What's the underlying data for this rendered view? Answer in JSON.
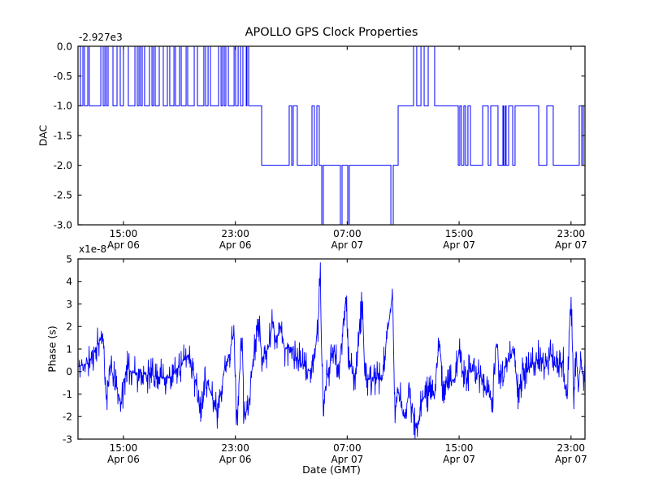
{
  "figure_title": "APOLLO GPS Clock Properties",
  "line_color": "#0000ff",
  "axis_color": "#1a1a1a",
  "chart_data": [
    {
      "type": "line",
      "name": "dac-subplot",
      "title": "APOLLO GPS Clock Properties",
      "ylabel": "DAC",
      "offset_text": "-2.927e3",
      "ylim": [
        -3.0,
        0.0
      ],
      "xlim": [
        11.75,
        48.0
      ],
      "grid": false,
      "legend": null,
      "yticks": [
        {
          "v": 0.0,
          "label": "0.0"
        },
        {
          "v": -0.5,
          "label": "-0.5"
        },
        {
          "v": -1.0,
          "label": "-1.0"
        },
        {
          "v": -1.5,
          "label": "-1.5"
        },
        {
          "v": -2.0,
          "label": "-2.0"
        },
        {
          "v": -2.5,
          "label": "-2.5"
        },
        {
          "v": -3.0,
          "label": "-3.0"
        }
      ],
      "xticks": [
        {
          "v": 15,
          "time": "15:00",
          "date": "Apr 06"
        },
        {
          "v": 23,
          "time": "23:00",
          "date": "Apr 06"
        },
        {
          "v": 31,
          "time": "07:00",
          "date": "Apr 07"
        },
        {
          "v": 39,
          "time": "15:00",
          "date": "Apr 07"
        },
        {
          "v": 47,
          "time": "23:00",
          "date": "Apr 07"
        }
      ],
      "series": [
        {
          "name": "DAC",
          "color": "#0000ff",
          "style": "step-post",
          "points": [
            [
              11.75,
              0
            ],
            [
              11.92,
              -1
            ],
            [
              12.1,
              0
            ],
            [
              12.21,
              -1
            ],
            [
              12.45,
              0
            ],
            [
              12.56,
              -1
            ],
            [
              13.38,
              0
            ],
            [
              13.55,
              -1
            ],
            [
              13.67,
              0
            ],
            [
              13.78,
              -1
            ],
            [
              13.9,
              0
            ],
            [
              14.25,
              -1
            ],
            [
              14.54,
              0
            ],
            [
              14.77,
              -1
            ],
            [
              15.0,
              0
            ],
            [
              15.35,
              -1
            ],
            [
              15.82,
              0
            ],
            [
              15.99,
              -1
            ],
            [
              16.11,
              0
            ],
            [
              16.22,
              -1
            ],
            [
              16.34,
              0
            ],
            [
              16.51,
              -1
            ],
            [
              16.86,
              0
            ],
            [
              17.04,
              -1
            ],
            [
              17.15,
              0
            ],
            [
              17.27,
              -1
            ],
            [
              17.56,
              0
            ],
            [
              17.85,
              -1
            ],
            [
              18.14,
              0
            ],
            [
              18.31,
              -1
            ],
            [
              18.61,
              0
            ],
            [
              18.72,
              -1
            ],
            [
              19.01,
              0
            ],
            [
              19.13,
              -1
            ],
            [
              19.48,
              0
            ],
            [
              19.59,
              -1
            ],
            [
              20.06,
              0
            ],
            [
              20.29,
              -1
            ],
            [
              20.75,
              0
            ],
            [
              20.87,
              -1
            ],
            [
              21.05,
              0
            ],
            [
              21.22,
              -1
            ],
            [
              21.8,
              0
            ],
            [
              21.98,
              -1
            ],
            [
              22.09,
              0
            ],
            [
              22.21,
              -1
            ],
            [
              22.32,
              0
            ],
            [
              22.5,
              -1
            ],
            [
              22.91,
              0
            ],
            [
              23.02,
              -1
            ],
            [
              23.2,
              0
            ],
            [
              23.37,
              -1
            ],
            [
              23.54,
              0
            ],
            [
              23.78,
              -1
            ],
            [
              23.83,
              0
            ],
            [
              23.95,
              -1
            ],
            [
              24.88,
              -2
            ],
            [
              26.85,
              -1
            ],
            [
              27.03,
              -2
            ],
            [
              27.14,
              -1
            ],
            [
              27.43,
              -2
            ],
            [
              28.48,
              -1
            ],
            [
              28.65,
              -2
            ],
            [
              28.83,
              -1
            ],
            [
              29.0,
              -2
            ],
            [
              29.18,
              -3
            ],
            [
              29.29,
              -2
            ],
            [
              30.51,
              -3
            ],
            [
              30.63,
              -2
            ],
            [
              31.04,
              -3
            ],
            [
              31.15,
              -2
            ],
            [
              34.12,
              -3
            ],
            [
              34.29,
              -2
            ],
            [
              34.64,
              -1
            ],
            [
              35.74,
              0
            ],
            [
              35.97,
              -1
            ],
            [
              36.27,
              0
            ],
            [
              36.5,
              -1
            ],
            [
              36.79,
              0
            ],
            [
              37.25,
              -1
            ],
            [
              38.94,
              -2
            ],
            [
              39.05,
              -1
            ],
            [
              39.17,
              -2
            ],
            [
              39.34,
              -1
            ],
            [
              39.46,
              -2
            ],
            [
              39.63,
              -1
            ],
            [
              39.81,
              -2
            ],
            [
              40.68,
              -1
            ],
            [
              41.08,
              -2
            ],
            [
              41.26,
              -1
            ],
            [
              41.78,
              -2
            ],
            [
              42.13,
              -1
            ],
            [
              42.19,
              -2
            ],
            [
              42.31,
              -1
            ],
            [
              42.36,
              -2
            ],
            [
              42.54,
              -1
            ],
            [
              42.83,
              -2
            ],
            [
              43.0,
              -1
            ],
            [
              44.69,
              -2
            ],
            [
              45.27,
              -1
            ],
            [
              45.73,
              -2
            ],
            [
              47.59,
              -1
            ],
            [
              47.77,
              -2
            ],
            [
              47.88,
              -1
            ],
            [
              48.0,
              -1
            ]
          ]
        }
      ]
    },
    {
      "type": "line",
      "name": "phase-subplot",
      "ylabel": "Phase (s)",
      "xlabel": "Date (GMT)",
      "offset_text": "x1e-8",
      "ylim": [
        -3,
        5
      ],
      "xlim": [
        11.75,
        48.0
      ],
      "grid": false,
      "legend": null,
      "yticks": [
        {
          "v": 5,
          "label": "5"
        },
        {
          "v": 4,
          "label": "4"
        },
        {
          "v": 3,
          "label": "3"
        },
        {
          "v": 2,
          "label": "2"
        },
        {
          "v": 1,
          "label": "1"
        },
        {
          "v": 0,
          "label": "0"
        },
        {
          "v": -1,
          "label": "-1"
        },
        {
          "v": -2,
          "label": "-2"
        },
        {
          "v": -3,
          "label": "-3"
        }
      ],
      "xticks": [
        {
          "v": 15,
          "time": "15:00",
          "date": "Apr 06"
        },
        {
          "v": 23,
          "time": "23:00",
          "date": "Apr 06"
        },
        {
          "v": 31,
          "time": "07:00",
          "date": "Apr 07"
        },
        {
          "v": 39,
          "time": "15:00",
          "date": "Apr 07"
        },
        {
          "v": 47,
          "time": "23:00",
          "date": "Apr 07"
        }
      ],
      "series": [
        {
          "name": "Phase",
          "color": "#0000ff",
          "style": "noisy-line",
          "units": "1e-8 s",
          "keypoints": [
            [
              11.75,
              0.2
            ],
            [
              12.56,
              0.4
            ],
            [
              13.55,
              1.7
            ],
            [
              13.67,
              -0.5
            ],
            [
              13.78,
              -1.2
            ],
            [
              14.02,
              0.3
            ],
            [
              14.83,
              -1.4
            ],
            [
              15.18,
              0.1
            ],
            [
              16.05,
              -0.1
            ],
            [
              17.21,
              -0.2
            ],
            [
              18.37,
              -0.3
            ],
            [
              19.71,
              0.8
            ],
            [
              20.12,
              -0.4
            ],
            [
              20.52,
              -1.5
            ],
            [
              20.81,
              -0.2
            ],
            [
              21.74,
              -1.8
            ],
            [
              22.15,
              -0.1
            ],
            [
              22.91,
              1.7
            ],
            [
              23.08,
              -2.3
            ],
            [
              23.49,
              1.7
            ],
            [
              23.6,
              -2.0
            ],
            [
              23.95,
              -1.6
            ],
            [
              24.18,
              0.0
            ],
            [
              24.65,
              2.6
            ],
            [
              24.88,
              0.6
            ],
            [
              25.34,
              1.0
            ],
            [
              25.69,
              2.3
            ],
            [
              25.93,
              1.2
            ],
            [
              26.16,
              2.2
            ],
            [
              26.51,
              1.0
            ],
            [
              26.97,
              1.1
            ],
            [
              27.38,
              0.6
            ],
            [
              27.96,
              0.2
            ],
            [
              28.54,
              -0.1
            ],
            [
              28.95,
              2.4
            ],
            [
              29.06,
              4.6
            ],
            [
              29.18,
              0.5
            ],
            [
              29.29,
              -1.5
            ],
            [
              29.58,
              -0.1
            ],
            [
              30.11,
              1.0
            ],
            [
              30.34,
              -0.3
            ],
            [
              30.92,
              3.5
            ],
            [
              31.1,
              0.3
            ],
            [
              31.56,
              -0.2
            ],
            [
              32.08,
              3.2
            ],
            [
              32.26,
              -0.4
            ],
            [
              32.9,
              -0.3
            ],
            [
              33.48,
              -0.4
            ],
            [
              34.24,
              3.5
            ],
            [
              34.41,
              -2.0
            ],
            [
              34.64,
              -0.8
            ],
            [
              35.05,
              -2.1
            ],
            [
              35.4,
              -1.0
            ],
            [
              35.97,
              -2.6
            ],
            [
              36.26,
              -1.3
            ],
            [
              36.85,
              -0.9
            ],
            [
              37.25,
              -1.1
            ],
            [
              37.6,
              1.5
            ],
            [
              37.83,
              -0.6
            ],
            [
              38.24,
              -0.5
            ],
            [
              38.71,
              -0.3
            ],
            [
              39.0,
              0.9
            ],
            [
              39.29,
              -0.1
            ],
            [
              39.87,
              0.0
            ],
            [
              40.45,
              -0.1
            ],
            [
              41.38,
              -1.4
            ],
            [
              41.67,
              1.3
            ],
            [
              41.9,
              -0.2
            ],
            [
              42.42,
              0.3
            ],
            [
              42.89,
              1.1
            ],
            [
              43.18,
              -0.9
            ],
            [
              43.64,
              0.0
            ],
            [
              44.22,
              0.3
            ],
            [
              44.69,
              0.6
            ],
            [
              45.09,
              0.2
            ],
            [
              45.56,
              0.8
            ],
            [
              45.96,
              0.1
            ],
            [
              46.43,
              0.5
            ],
            [
              46.72,
              -1.7
            ],
            [
              46.9,
              2.2
            ],
            [
              47.01,
              3.3
            ],
            [
              47.13,
              0.5
            ],
            [
              47.19,
              -1.8
            ],
            [
              47.36,
              1.0
            ],
            [
              47.53,
              -0.8
            ],
            [
              47.71,
              0.6
            ],
            [
              47.88,
              -0.3
            ],
            [
              48.0,
              0.3
            ]
          ],
          "noise": {
            "amplitude": 0.85,
            "shape": "cubic",
            "samples": 1500,
            "seed": 11
          }
        }
      ]
    }
  ]
}
